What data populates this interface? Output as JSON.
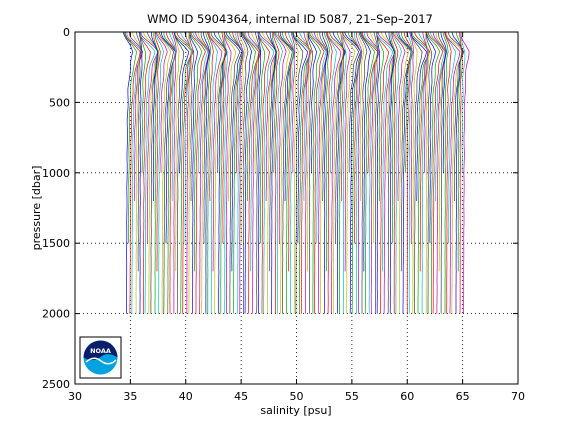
{
  "chart_data": {
    "type": "line",
    "title": "WMO ID 5904364, internal ID 5087, 21–Sep–2017",
    "xlabel": "salinity [psu]",
    "ylabel": "pressure [dbar]",
    "xlim": [
      30,
      70
    ],
    "ylim": [
      0,
      2500
    ],
    "y_reversed": true,
    "xticks": [
      30,
      35,
      40,
      45,
      50,
      55,
      60,
      65,
      70
    ],
    "yticks": [
      0,
      500,
      1000,
      1500,
      2000,
      2500
    ],
    "grid": "dotted",
    "profile_count": 180,
    "profile_offset_step": 0.17,
    "base_salinity_first_profile": 34.7,
    "profile_shape_pressure": [
      0,
      30,
      60,
      100,
      140,
      180,
      230,
      300,
      400,
      550,
      750,
      1000,
      1500,
      2000
    ],
    "profile_shape_anomaly": [
      -0.35,
      -0.3,
      -0.05,
      0.3,
      0.55,
      0.45,
      0.3,
      0.22,
      0.12,
      0.05,
      0.02,
      0.0,
      -0.03,
      -0.05
    ],
    "profile_max_depth_pattern": [
      2000,
      1500,
      2000,
      2000,
      1200,
      2000,
      1700,
      2000,
      1000,
      2000
    ],
    "line_colors": [
      "#0000ff",
      "#00aa00",
      "#ff0000",
      "#00bfbf",
      "#bf00bf",
      "#bfbf00",
      "#404040"
    ]
  },
  "logo": {
    "text": "NOAA"
  }
}
